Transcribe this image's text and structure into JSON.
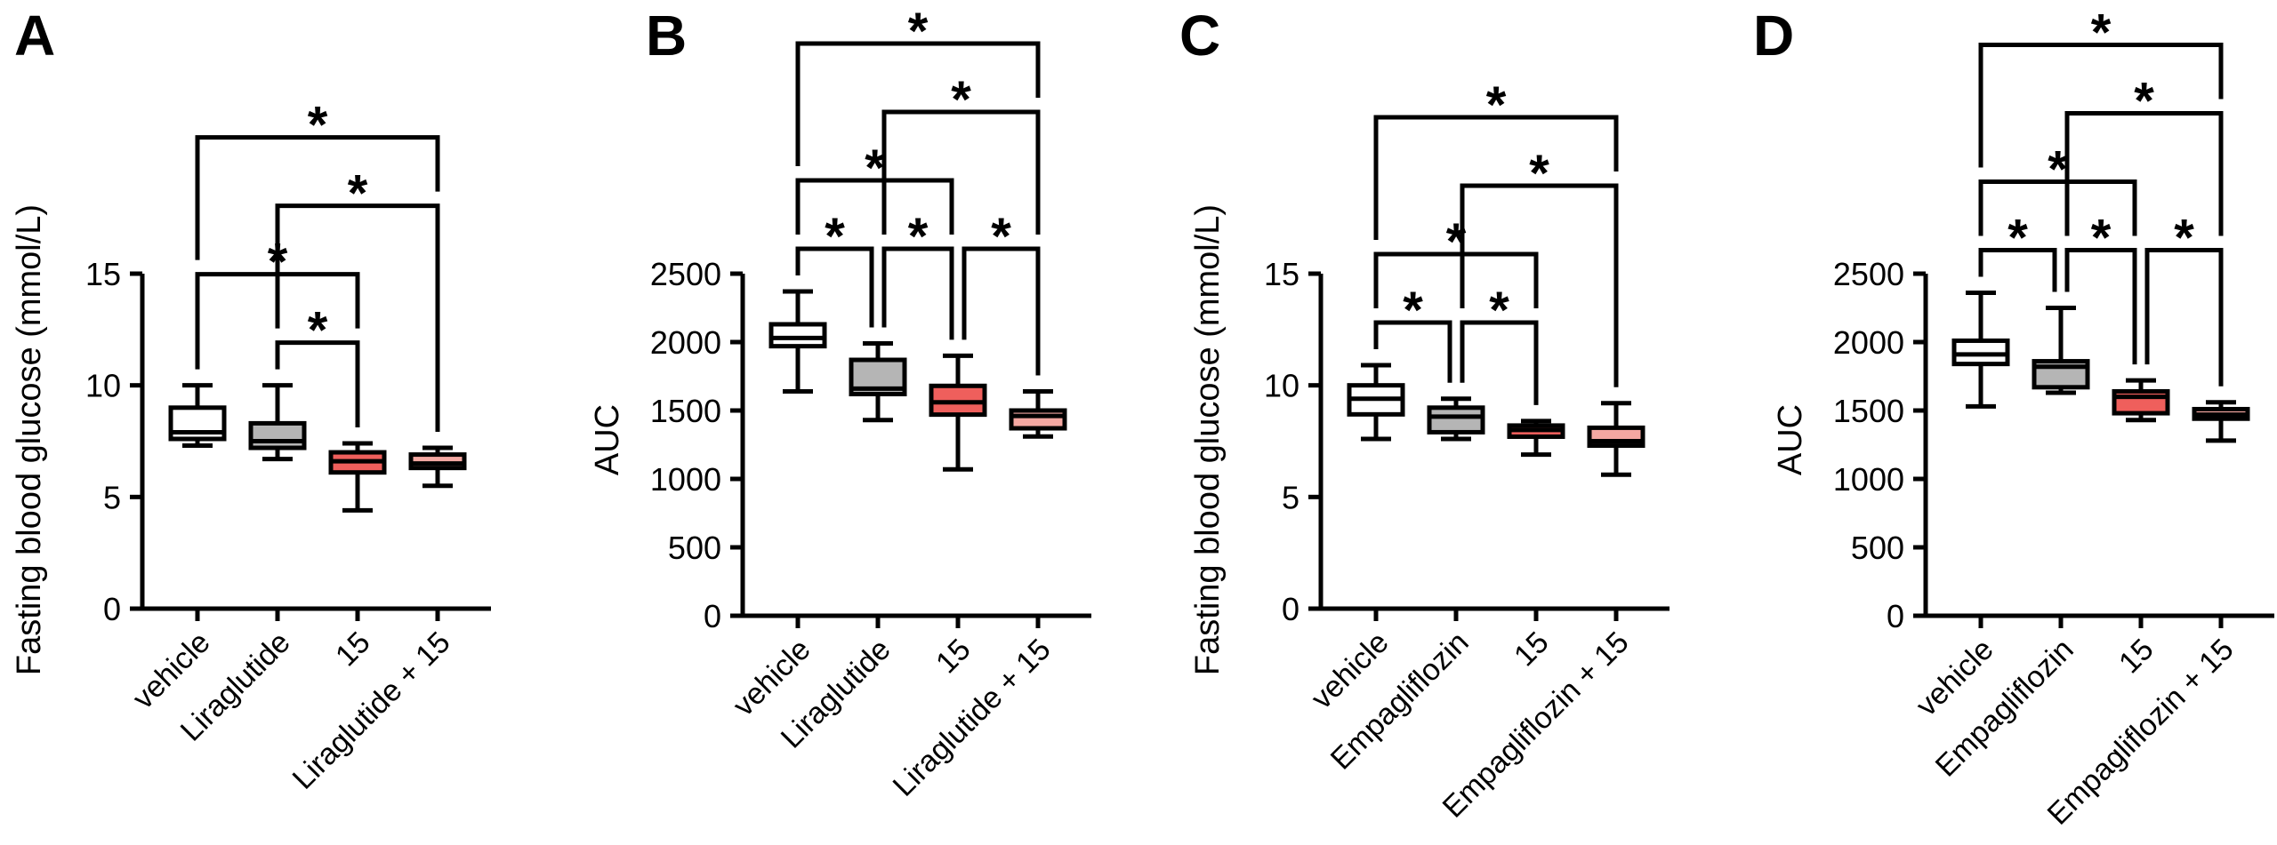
{
  "figure_title": "",
  "accent_colors": {
    "vehicle_fill": "#ffffff",
    "drug_fill": "#b5b5b5",
    "compound15_fill": "#ef5f5c",
    "combination_fill": "#f4a8a2",
    "line_color": "#000000"
  },
  "chart_data": [
    {
      "type": "box",
      "panel_label": "A",
      "title": "",
      "xlabel": "",
      "ylabel": "Fasting blood glucose (mmol/L)",
      "ylim": [
        0,
        15
      ],
      "yticks": [
        0,
        5,
        10,
        15
      ],
      "grid": false,
      "legend": "none",
      "categories": [
        "vehicle",
        "Liraglutide",
        "15",
        "Liraglutide + 15"
      ],
      "boxes": [
        {
          "category": "vehicle",
          "color": "#ffffff",
          "min": 7.3,
          "q1": 7.6,
          "median": 7.9,
          "q3": 9.0,
          "max": 10.0
        },
        {
          "category": "Liraglutide",
          "color": "#b5b5b5",
          "min": 6.7,
          "q1": 7.2,
          "median": 7.5,
          "q3": 8.3,
          "max": 10.0
        },
        {
          "category": "15",
          "color": "#ef5f5c",
          "min": 4.4,
          "q1": 6.1,
          "median": 6.6,
          "q3": 7.0,
          "max": 7.4
        },
        {
          "category": "Liraglutide + 15",
          "color": "#f4a8a2",
          "min": 5.5,
          "q1": 6.3,
          "median": 6.5,
          "q3": 6.9,
          "max": 7.2
        }
      ],
      "significance": [
        {
          "group1": "Liraglutide",
          "group2": "15",
          "label": "*",
          "level": 0
        },
        {
          "group1": "vehicle",
          "group2": "15",
          "label": "*",
          "level": 1
        },
        {
          "group1": "Liraglutide",
          "group2": "Liraglutide + 15",
          "label": "*",
          "level": 2
        },
        {
          "group1": "vehicle",
          "group2": "Liraglutide + 15",
          "label": "*",
          "level": 3
        }
      ]
    },
    {
      "type": "box",
      "panel_label": "B",
      "title": "",
      "xlabel": "",
      "ylabel": "AUC",
      "ylim": [
        0,
        2500
      ],
      "yticks": [
        0,
        500,
        1000,
        1500,
        2000,
        2500
      ],
      "grid": false,
      "legend": "none",
      "categories": [
        "vehicle",
        "Liraglutide",
        "15",
        "Liraglutide + 15"
      ],
      "boxes": [
        {
          "category": "vehicle",
          "color": "#ffffff",
          "min": 1640,
          "q1": 1970,
          "median": 2030,
          "q3": 2130,
          "max": 2370
        },
        {
          "category": "Liraglutide",
          "color": "#b5b5b5",
          "min": 1430,
          "q1": 1620,
          "median": 1660,
          "q3": 1870,
          "max": 1990
        },
        {
          "category": "15",
          "color": "#ef5f5c",
          "min": 1070,
          "q1": 1470,
          "median": 1560,
          "q3": 1680,
          "max": 1900
        },
        {
          "category": "Liraglutide + 15",
          "color": "#f4a8a2",
          "min": 1310,
          "q1": 1370,
          "median": 1460,
          "q3": 1500,
          "max": 1640
        }
      ],
      "significance": [
        {
          "group1": "vehicle",
          "group2": "Liraglutide",
          "label": "*",
          "level": 0
        },
        {
          "group1": "Liraglutide",
          "group2": "15",
          "label": "*",
          "level": 0
        },
        {
          "group1": "15",
          "group2": "Liraglutide + 15",
          "label": "*",
          "level": 0
        },
        {
          "group1": "vehicle",
          "group2": "15",
          "label": "*",
          "level": 1
        },
        {
          "group1": "Liraglutide",
          "group2": "Liraglutide + 15",
          "label": "*",
          "level": 2
        },
        {
          "group1": "vehicle",
          "group2": "Liraglutide + 15",
          "label": "*",
          "level": 3
        }
      ]
    },
    {
      "type": "box",
      "panel_label": "C",
      "title": "",
      "xlabel": "",
      "ylabel": "Fasting blood glucose (mmol/L)",
      "ylim": [
        0,
        15
      ],
      "yticks": [
        0,
        5,
        10,
        15
      ],
      "grid": false,
      "legend": "none",
      "categories": [
        "vehicle",
        "Empagliflozin",
        "15",
        "Empagliflozin + 15"
      ],
      "boxes": [
        {
          "category": "vehicle",
          "color": "#ffffff",
          "min": 7.6,
          "q1": 8.7,
          "median": 9.4,
          "q3": 10.0,
          "max": 10.9
        },
        {
          "category": "Empagliflozin",
          "color": "#b5b5b5",
          "min": 7.6,
          "q1": 7.9,
          "median": 8.6,
          "q3": 9.0,
          "max": 9.4
        },
        {
          "category": "15",
          "color": "#ef5f5c",
          "min": 6.9,
          "q1": 7.7,
          "median": 8.0,
          "q3": 8.2,
          "max": 8.4
        },
        {
          "category": "Empagliflozin + 15",
          "color": "#f4a8a2",
          "min": 6.0,
          "q1": 7.3,
          "median": 7.5,
          "q3": 8.1,
          "max": 9.2
        }
      ],
      "significance": [
        {
          "group1": "vehicle",
          "group2": "Empagliflozin",
          "label": "*",
          "level": 0
        },
        {
          "group1": "Empagliflozin",
          "group2": "15",
          "label": "*",
          "level": 0
        },
        {
          "group1": "vehicle",
          "group2": "15",
          "label": "*",
          "level": 1
        },
        {
          "group1": "Empagliflozin",
          "group2": "Empagliflozin + 15",
          "label": "*",
          "level": 2
        },
        {
          "group1": "vehicle",
          "group2": "Empagliflozin + 15",
          "label": "*",
          "level": 3
        }
      ]
    },
    {
      "type": "box",
      "panel_label": "D",
      "title": "",
      "xlabel": "",
      "ylabel": "AUC",
      "ylim": [
        0,
        2500
      ],
      "yticks": [
        0,
        500,
        1000,
        1500,
        2000,
        2500
      ],
      "grid": false,
      "legend": "none",
      "categories": [
        "vehicle",
        "Empagliflozin",
        "15",
        "Empagliflozin + 15"
      ],
      "boxes": [
        {
          "category": "vehicle",
          "color": "#ffffff",
          "min": 1530,
          "q1": 1840,
          "median": 1910,
          "q3": 2010,
          "max": 2360
        },
        {
          "category": "Empagliflozin",
          "color": "#b5b5b5",
          "min": 1630,
          "q1": 1670,
          "median": 1820,
          "q3": 1860,
          "max": 2250
        },
        {
          "category": "15",
          "color": "#ef5f5c",
          "min": 1430,
          "q1": 1480,
          "median": 1600,
          "q3": 1640,
          "max": 1720
        },
        {
          "category": "Empagliflozin + 15",
          "color": "#f4a8a2",
          "min": 1280,
          "q1": 1440,
          "median": 1470,
          "q3": 1510,
          "max": 1560
        }
      ],
      "significance": [
        {
          "group1": "vehicle",
          "group2": "Empagliflozin",
          "label": "*",
          "level": 0
        },
        {
          "group1": "Empagliflozin",
          "group2": "15",
          "label": "*",
          "level": 0
        },
        {
          "group1": "15",
          "group2": "Empagliflozin + 15",
          "label": "*",
          "level": 0
        },
        {
          "group1": "vehicle",
          "group2": "15",
          "label": "*",
          "level": 1
        },
        {
          "group1": "Empagliflozin",
          "group2": "Empagliflozin + 15",
          "label": "*",
          "level": 2
        },
        {
          "group1": "vehicle",
          "group2": "Empagliflozin + 15",
          "label": "*",
          "level": 3
        }
      ]
    }
  ]
}
